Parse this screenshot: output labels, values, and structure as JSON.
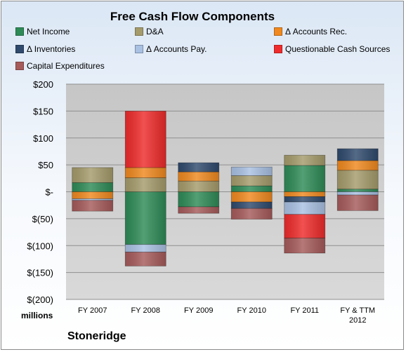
{
  "chart_data": {
    "type": "bar",
    "stacked": true,
    "title": "Free Cash Flow Components",
    "units": "millions",
    "company": "Stoneridge",
    "categories": [
      "FY 2007",
      "FY 2008",
      "FY 2009",
      "FY 2010",
      "FY 2011",
      "FY & TTM 2012"
    ],
    "ylim": [
      -200,
      200
    ],
    "yticks": [
      200,
      150,
      100,
      50,
      0,
      -50,
      -100,
      -150,
      -200
    ],
    "ytick_labels": [
      "$200",
      "$150",
      "$100",
      "$50",
      "$-",
      "$(50)",
      "$(100)",
      "$(150)",
      "$(200)"
    ],
    "grid": true,
    "legend_position": "top",
    "series": [
      {
        "name": "Net Income",
        "color": "#2e8b57",
        "values": [
          17,
          -98,
          -28,
          11,
          49,
          5
        ]
      },
      {
        "name": "D&A",
        "color": "#a59b6b",
        "values": [
          28,
          26,
          20,
          19,
          19,
          35
        ]
      },
      {
        "name": "Δ Accounts Rec.",
        "color": "#f0891f",
        "values": [
          -13,
          19,
          17,
          -19,
          -9,
          18
        ]
      },
      {
        "name": "Δ Inventories",
        "color": "#2f4a6d",
        "values": [
          0,
          0,
          17,
          -12,
          -10,
          22
        ]
      },
      {
        "name": "Δ Accounts Pay.",
        "color": "#a9c1e3",
        "values": [
          -3,
          -14,
          0,
          16,
          -23,
          -6
        ]
      },
      {
        "name": "Questionable Cash Sources",
        "color": "#ef2b2b",
        "values": [
          0,
          105,
          0,
          0,
          -44,
          0
        ]
      },
      {
        "name": "Capital Expenditures",
        "color": "#a65a5a",
        "values": [
          -20,
          -26,
          -12,
          -20,
          -28,
          -29
        ]
      }
    ]
  }
}
